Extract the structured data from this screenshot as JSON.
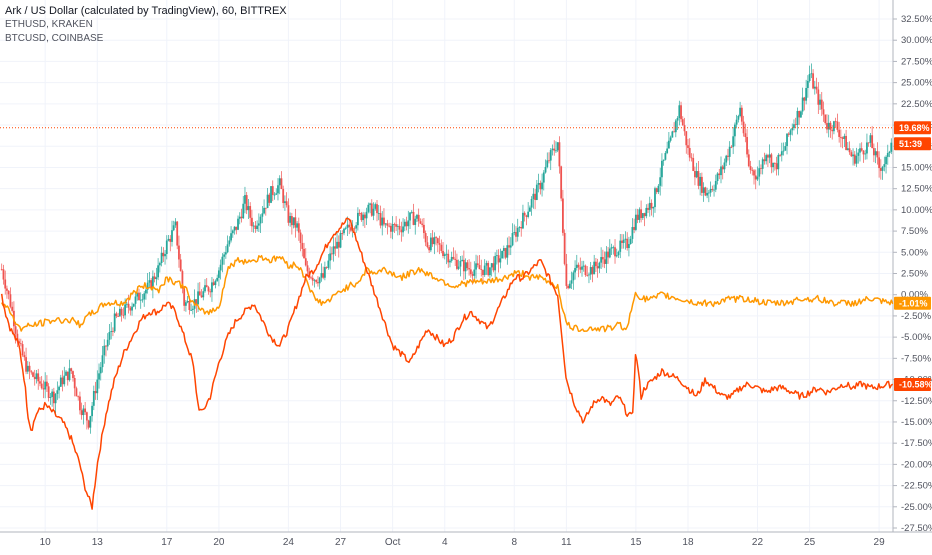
{
  "chart_data": {
    "type": "line",
    "title": "Ark / US Dollar (calculated by TradingView), 60, BITTREX",
    "legend_placement": "top-left",
    "series_labels": [
      "ETHUSD, KRAKEN",
      "BTCUSD, COINBASE"
    ],
    "ylim": [
      -27.5,
      32.5
    ],
    "y_ticks": [
      "32.50%",
      "30.00%",
      "27.50%",
      "25.00%",
      "22.50%",
      "20.00%",
      "17.50%",
      "15.00%",
      "12.50%",
      "10.00%",
      "7.50%",
      "5.00%",
      "2.50%",
      "0.00%",
      "-2.50%",
      "-5.00%",
      "-7.50%",
      "-10.00%",
      "-12.50%",
      "-15.00%",
      "-17.50%",
      "-20.00%",
      "-22.50%",
      "-25.00%",
      "-27.50%"
    ],
    "x_ticks": [
      {
        "label": "10",
        "x": 0.5
      },
      {
        "label": "13",
        "x": 3.5
      },
      {
        "label": "17",
        "x": 7.5
      },
      {
        "label": "20",
        "x": 10.5
      },
      {
        "label": "24",
        "x": 14.5
      },
      {
        "label": "27",
        "x": 17.5
      },
      {
        "label": "Oct",
        "x": 20.5
      },
      {
        "label": "4",
        "x": 23.5
      },
      {
        "label": "8",
        "x": 27.5
      },
      {
        "label": "11",
        "x": 30.5
      },
      {
        "label": "15",
        "x": 34.5
      },
      {
        "label": "18",
        "x": 37.5
      },
      {
        "label": "22",
        "x": 41.5
      },
      {
        "label": "25",
        "x": 44.5
      },
      {
        "label": "29",
        "x": 48.5
      }
    ],
    "xlim": [
      -2.1,
      49.3
    ],
    "grid": true,
    "series": [
      {
        "role": "candles",
        "color_up": "#26a69a",
        "color_down": "#ef5350",
        "points": [
          [
            -2,
            3
          ],
          [
            -1.5,
            -1
          ],
          [
            -1,
            -6
          ],
          [
            -0.5,
            -9
          ],
          [
            0,
            -10
          ],
          [
            0.5,
            -11
          ],
          [
            1,
            -12
          ],
          [
            1.5,
            -10
          ],
          [
            2,
            -9
          ],
          [
            2.5,
            -13
          ],
          [
            3,
            -15
          ],
          [
            3.5,
            -10
          ],
          [
            4,
            -6
          ],
          [
            4.5,
            -3
          ],
          [
            5,
            -2
          ],
          [
            6,
            0
          ],
          [
            6.5,
            1
          ],
          [
            7,
            3
          ],
          [
            7.5,
            6
          ],
          [
            8,
            8
          ],
          [
            8.5,
            -1
          ],
          [
            9,
            -1
          ],
          [
            10,
            1
          ],
          [
            10.5,
            3
          ],
          [
            11,
            6
          ],
          [
            11.5,
            8
          ],
          [
            12,
            11
          ],
          [
            12.5,
            8
          ],
          [
            13,
            10
          ],
          [
            13.5,
            12
          ],
          [
            14,
            13
          ],
          [
            14.5,
            9
          ],
          [
            15,
            8
          ],
          [
            15.5,
            3
          ],
          [
            16,
            2
          ],
          [
            16.5,
            2
          ],
          [
            17,
            5
          ],
          [
            18,
            8
          ],
          [
            18.5,
            9
          ],
          [
            19,
            10
          ],
          [
            19.5,
            10
          ],
          [
            20,
            8
          ],
          [
            20.5,
            8
          ],
          [
            21,
            8
          ],
          [
            21.5,
            9
          ],
          [
            22,
            9
          ],
          [
            22.5,
            6
          ],
          [
            23,
            6
          ],
          [
            24,
            4
          ],
          [
            25,
            3
          ],
          [
            26,
            3
          ],
          [
            27,
            5
          ],
          [
            28,
            9
          ],
          [
            28.5,
            11
          ],
          [
            29,
            13
          ],
          [
            29.5,
            16
          ],
          [
            30,
            18
          ],
          [
            30.5,
            1
          ],
          [
            31,
            3
          ],
          [
            32,
            3
          ],
          [
            33,
            5
          ],
          [
            34,
            6
          ],
          [
            34.5,
            9
          ],
          [
            35,
            10
          ],
          [
            35.5,
            11
          ],
          [
            36,
            15
          ],
          [
            36.5,
            18
          ],
          [
            37,
            22
          ],
          [
            37.5,
            17
          ],
          [
            38,
            14
          ],
          [
            38.5,
            12
          ],
          [
            39,
            13
          ],
          [
            39.5,
            15
          ],
          [
            40,
            18
          ],
          [
            40.5,
            22
          ],
          [
            41,
            15
          ],
          [
            41.5,
            14
          ],
          [
            42,
            17
          ],
          [
            42.5,
            15
          ],
          [
            43,
            17
          ],
          [
            43.5,
            20
          ],
          [
            44,
            22
          ],
          [
            44.5,
            26
          ],
          [
            45,
            23
          ],
          [
            45.5,
            20
          ],
          [
            46,
            20
          ],
          [
            46.5,
            18
          ],
          [
            47,
            16
          ],
          [
            47.5,
            17
          ],
          [
            48,
            18
          ],
          [
            48.5,
            15
          ],
          [
            49,
            16
          ],
          [
            49.3,
            19.68
          ]
        ]
      },
      {
        "role": "line",
        "name": "ETHUSD, KRAKEN",
        "color": "#ff9800",
        "points": [
          [
            -2,
            -1
          ],
          [
            -1.5,
            -2
          ],
          [
            -1,
            -4
          ],
          [
            0,
            -3.5
          ],
          [
            1,
            -3
          ],
          [
            2,
            -3
          ],
          [
            2.5,
            -3.5
          ],
          [
            3,
            -2.5
          ],
          [
            4,
            -1
          ],
          [
            5,
            -1
          ],
          [
            6,
            1
          ],
          [
            6.5,
            1
          ],
          [
            7,
            0.5
          ],
          [
            7.5,
            2
          ],
          [
            8,
            1.5
          ],
          [
            8.5,
            1
          ],
          [
            9,
            -1
          ],
          [
            9.5,
            -2
          ],
          [
            10,
            -2
          ],
          [
            10.5,
            -1.5
          ],
          [
            11,
            3
          ],
          [
            11.5,
            4
          ],
          [
            12,
            4
          ],
          [
            12.5,
            4
          ],
          [
            13,
            4.5
          ],
          [
            13.5,
            4
          ],
          [
            14,
            4.5
          ],
          [
            14.5,
            3.5
          ],
          [
            15,
            3.5
          ],
          [
            15.5,
            2
          ],
          [
            16,
            -0.5
          ],
          [
            16.5,
            -1
          ],
          [
            17,
            -0.5
          ],
          [
            17.5,
            0.5
          ],
          [
            18,
            1
          ],
          [
            18.5,
            1.5
          ],
          [
            19,
            3
          ],
          [
            19.5,
            2.5
          ],
          [
            20,
            3
          ],
          [
            20.5,
            2.5
          ],
          [
            21,
            2
          ],
          [
            22,
            3
          ],
          [
            23,
            2
          ],
          [
            24,
            1
          ],
          [
            25,
            1.5
          ],
          [
            26,
            1.5
          ],
          [
            27,
            2
          ],
          [
            27.5,
            2.5
          ],
          [
            28,
            2.5
          ],
          [
            28.5,
            2
          ],
          [
            29,
            2
          ],
          [
            29.5,
            1.5
          ],
          [
            30,
            1
          ],
          [
            30.5,
            -3.5
          ],
          [
            31,
            -4
          ],
          [
            32,
            -4
          ],
          [
            33,
            -4
          ],
          [
            33.5,
            -3.5
          ],
          [
            34,
            -4
          ],
          [
            34.5,
            0.5
          ],
          [
            34.8,
            -0.5
          ],
          [
            35,
            -0.5
          ],
          [
            35.5,
            -0.5
          ],
          [
            36,
            0
          ],
          [
            37,
            -0.5
          ],
          [
            38,
            -1
          ],
          [
            39,
            -1
          ],
          [
            40,
            -0.5
          ],
          [
            41,
            -0.5
          ],
          [
            42,
            -1
          ],
          [
            43,
            -1
          ],
          [
            44,
            -0.5
          ],
          [
            45,
            -0.5
          ],
          [
            46,
            -1
          ],
          [
            47,
            -1
          ],
          [
            48,
            -0.5
          ],
          [
            49,
            -1
          ],
          [
            49.3,
            -1.01
          ]
        ]
      },
      {
        "role": "line",
        "name": "BTCUSD, COINBASE",
        "color": "#ff4500",
        "points": [
          [
            -2,
            0
          ],
          [
            -1.8,
            -2
          ],
          [
            -1.5,
            -4
          ],
          [
            -1,
            -6
          ],
          [
            -0.7,
            -10
          ],
          [
            -0.5,
            -14
          ],
          [
            -0.3,
            -16
          ],
          [
            0,
            -14
          ],
          [
            0.5,
            -13
          ],
          [
            1,
            -14
          ],
          [
            1.5,
            -15
          ],
          [
            2,
            -17
          ],
          [
            2.5,
            -20
          ],
          [
            2.7,
            -22
          ],
          [
            3,
            -24
          ],
          [
            3.2,
            -25
          ],
          [
            3.5,
            -20
          ],
          [
            4,
            -14
          ],
          [
            4.5,
            -10
          ],
          [
            5,
            -7
          ],
          [
            5.5,
            -5
          ],
          [
            6,
            -3
          ],
          [
            6.5,
            -2
          ],
          [
            7,
            -2
          ],
          [
            7.5,
            -1
          ],
          [
            8,
            -2
          ],
          [
            8.5,
            -5
          ],
          [
            9,
            -8
          ],
          [
            9.3,
            -13
          ],
          [
            9.5,
            -14
          ],
          [
            10,
            -12
          ],
          [
            10.5,
            -8
          ],
          [
            11,
            -5
          ],
          [
            11.5,
            -3
          ],
          [
            12,
            -2
          ],
          [
            12.5,
            -1
          ],
          [
            13,
            -3
          ],
          [
            13.5,
            -5
          ],
          [
            14,
            -6
          ],
          [
            14.5,
            -4
          ],
          [
            15,
            -1
          ],
          [
            15.5,
            2
          ],
          [
            16,
            3
          ],
          [
            16.5,
            5
          ],
          [
            17,
            7
          ],
          [
            17.5,
            8
          ],
          [
            18,
            9
          ],
          [
            18.5,
            6
          ],
          [
            19,
            3
          ],
          [
            19.5,
            0
          ],
          [
            20,
            -3
          ],
          [
            20.5,
            -6
          ],
          [
            21,
            -7
          ],
          [
            21.5,
            -8
          ],
          [
            22,
            -6
          ],
          [
            22.5,
            -4
          ],
          [
            23,
            -5
          ],
          [
            23.5,
            -6
          ],
          [
            24,
            -5
          ],
          [
            24.5,
            -3
          ],
          [
            25,
            -2
          ],
          [
            25.5,
            -3
          ],
          [
            26,
            -4
          ],
          [
            26.5,
            -2
          ],
          [
            27,
            0
          ],
          [
            27.5,
            2
          ],
          [
            28,
            2
          ],
          [
            28.5,
            3
          ],
          [
            29,
            4
          ],
          [
            29.5,
            2
          ],
          [
            30,
            0
          ],
          [
            30.2,
            -4
          ],
          [
            30.5,
            -10
          ],
          [
            31,
            -13
          ],
          [
            31.5,
            -15
          ],
          [
            32,
            -13
          ],
          [
            32.5,
            -12
          ],
          [
            33,
            -13
          ],
          [
            33.5,
            -12
          ],
          [
            34,
            -14
          ],
          [
            34.3,
            -14.5
          ],
          [
            34.5,
            -6.5
          ],
          [
            34.8,
            -12
          ],
          [
            35,
            -11
          ],
          [
            35.5,
            -10
          ],
          [
            36,
            -9
          ],
          [
            36.5,
            -9.5
          ],
          [
            37,
            -10
          ],
          [
            37.5,
            -11
          ],
          [
            38,
            -12
          ],
          [
            38.5,
            -10
          ],
          [
            39,
            -11
          ],
          [
            39.5,
            -12
          ],
          [
            40,
            -12
          ],
          [
            40.5,
            -11
          ],
          [
            41,
            -10.5
          ],
          [
            41.5,
            -11
          ],
          [
            42,
            -11.5
          ],
          [
            42.5,
            -11
          ],
          [
            43,
            -11
          ],
          [
            44,
            -12
          ],
          [
            44.5,
            -11.5
          ],
          [
            45,
            -11
          ],
          [
            45.5,
            -11.5
          ],
          [
            46,
            -11
          ],
          [
            46.5,
            -10.5
          ],
          [
            47,
            -11
          ],
          [
            47.5,
            -10.5
          ],
          [
            48,
            -11
          ],
          [
            49,
            -10.6
          ],
          [
            49.3,
            -10.58
          ]
        ]
      }
    ],
    "last_value_tags": [
      {
        "text": "19.68%",
        "value": 19.68,
        "color": "#ff4500"
      },
      {
        "text": "51:39",
        "value": 17.8,
        "color": "#ff4500"
      },
      {
        "text": "-1.01%",
        "value": -1.01,
        "color": "#ff9800"
      },
      {
        "text": "-10.58%",
        "value": -10.58,
        "color": "#ff4500"
      }
    ],
    "price_line": {
      "value": 19.68,
      "color": "#ff4500"
    }
  }
}
